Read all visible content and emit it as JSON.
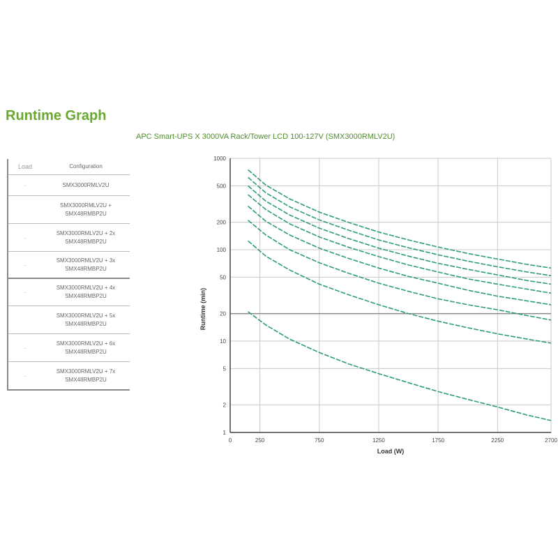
{
  "page": {
    "title": "Runtime Graph"
  },
  "legend": {
    "header": [
      "Load",
      "Configuration"
    ],
    "rows": [
      {
        "marker": "·",
        "text": "SMX3000RMLV2U"
      },
      {
        "marker": "",
        "text": "SMX3000RMLV2U + SMX48RMBP2U"
      },
      {
        "marker": "·",
        "text": "SMX3000RMLV2U + 2x SMX48RMBP2U"
      },
      {
        "marker": "·",
        "text": "SMX3000RMLV2U + 3x SMX48RMBP2U"
      },
      {
        "marker": "·",
        "text": "SMX3000RMLV2U + 4x SMX48RMBP2U"
      },
      {
        "marker": "",
        "text": "SMX3000RMLV2U + 5x SMX48RMBP2U"
      },
      {
        "marker": "·",
        "text": "SMX3000RMLV2U + 6x SMX48RMBP2U"
      },
      {
        "marker": "·",
        "text": "SMX3000RMLV2U + 7x SMX48RMBP2U"
      }
    ]
  },
  "colors": {
    "title": "#6aa832",
    "curve": "#2e9c79",
    "grid": "#c8c8c8",
    "refline": "#888888"
  },
  "chart_data": {
    "type": "line",
    "title": "APC Smart-UPS X 3000VA Rack/Tower LCD 100-127V (SMX3000RMLV2U)",
    "xlabel": "Load (W)",
    "ylabel": "Runtime (min)",
    "x_scale": "linear",
    "y_scale": "log",
    "xlim": [
      0,
      2700
    ],
    "ylim": [
      1,
      1000
    ],
    "x_ticks": [
      0,
      250,
      750,
      1250,
      1750,
      2250,
      2700
    ],
    "y_ticks": [
      1,
      2,
      5,
      10,
      20,
      50,
      100,
      200,
      500,
      1000
    ],
    "reference_line_y": 20,
    "grid": true,
    "series": [
      {
        "x": [
          150,
          300,
          500,
          750,
          1000,
          1250,
          1500,
          1750,
          2000,
          2250,
          2500,
          2700
        ],
        "y": [
          21,
          15,
          10.5,
          7.5,
          5.6,
          4.4,
          3.5,
          2.8,
          2.3,
          1.9,
          1.55,
          1.35
        ]
      },
      {
        "x": [
          150,
          300,
          500,
          750,
          1000,
          1250,
          1500,
          1750,
          2000,
          2250,
          2500,
          2700
        ],
        "y": [
          125,
          85,
          60,
          42,
          32,
          25,
          20,
          16.5,
          14,
          12,
          10.5,
          9.5
        ]
      },
      {
        "x": [
          150,
          300,
          500,
          750,
          1000,
          1250,
          1500,
          1750,
          2000,
          2250,
          2500,
          2700
        ],
        "y": [
          210,
          145,
          100,
          72,
          55,
          43,
          35,
          29,
          25,
          22,
          19,
          17
        ]
      },
      {
        "x": [
          150,
          300,
          500,
          750,
          1000,
          1250,
          1500,
          1750,
          2000,
          2250,
          2500,
          2700
        ],
        "y": [
          300,
          205,
          145,
          104,
          80,
          63,
          51,
          43,
          36,
          31,
          27.5,
          25
        ]
      },
      {
        "x": [
          150,
          300,
          500,
          750,
          1000,
          1250,
          1500,
          1750,
          2000,
          2250,
          2500,
          2700
        ],
        "y": [
          400,
          275,
          192,
          138,
          106,
          84,
          68,
          57,
          48,
          42,
          37,
          33.5
        ]
      },
      {
        "x": [
          150,
          300,
          500,
          750,
          1000,
          1250,
          1500,
          1750,
          2000,
          2250,
          2500,
          2700
        ],
        "y": [
          500,
          340,
          240,
          172,
          132,
          104,
          85,
          71,
          61,
          53,
          46,
          42
        ]
      },
      {
        "x": [
          150,
          300,
          500,
          750,
          1000,
          1250,
          1500,
          1750,
          2000,
          2250,
          2500,
          2700
        ],
        "y": [
          620,
          420,
          295,
          212,
          163,
          128,
          105,
          88,
          75,
          65,
          57,
          52
        ]
      },
      {
        "x": [
          150,
          300,
          500,
          750,
          1000,
          1250,
          1500,
          1750,
          2000,
          2250,
          2500,
          2700
        ],
        "y": [
          750,
          510,
          360,
          258,
          198,
          156,
          128,
          107,
          91,
          79,
          69,
          63
        ]
      }
    ]
  }
}
